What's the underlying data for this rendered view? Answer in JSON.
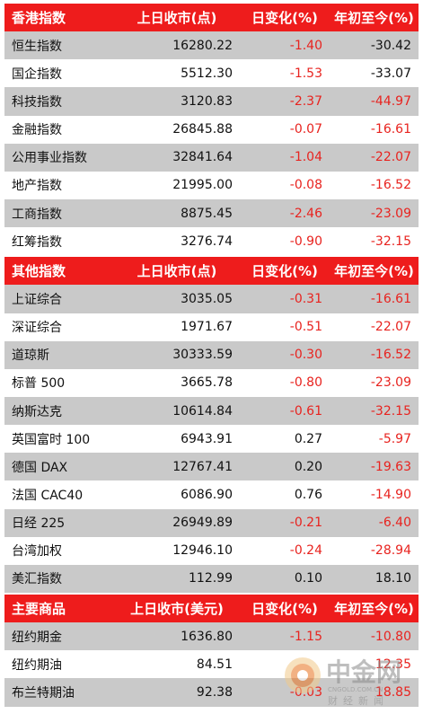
{
  "sections": [
    {
      "header": [
        "香港指数",
        "上日收市(点)",
        "日变化(%)",
        "年初至今(%)"
      ],
      "rows": [
        {
          "name": "恒生指数",
          "close": "16280.22",
          "day": "-1.40",
          "ytd": "-30.42",
          "day_color": "#e8231f",
          "ytd_color": "#111111"
        },
        {
          "name": "国企指数",
          "close": "5512.30",
          "day": "-1.53",
          "ytd": "-33.07",
          "day_color": "#e8231f",
          "ytd_color": "#111111"
        },
        {
          "name": "科技指数",
          "close": "3120.83",
          "day": "-2.37",
          "ytd": "-44.97",
          "day_color": "#e8231f",
          "ytd_color": "#e8231f"
        },
        {
          "name": "金融指数",
          "close": "26845.88",
          "day": "-0.07",
          "ytd": "-16.61",
          "day_color": "#e8231f",
          "ytd_color": "#e8231f"
        },
        {
          "name": "公用事业指数",
          "close": "32841.64",
          "day": "-1.04",
          "ytd": "-22.07",
          "day_color": "#e8231f",
          "ytd_color": "#e8231f"
        },
        {
          "name": "地产指数",
          "close": "21995.00",
          "day": "-0.08",
          "ytd": "-16.52",
          "day_color": "#e8231f",
          "ytd_color": "#e8231f"
        },
        {
          "name": "工商指数",
          "close": "8875.45",
          "day": "-2.46",
          "ytd": "-23.09",
          "day_color": "#e8231f",
          "ytd_color": "#e8231f"
        },
        {
          "name": "红筹指数",
          "close": "3276.74",
          "day": "-0.90",
          "ytd": "-32.15",
          "day_color": "#e8231f",
          "ytd_color": "#e8231f"
        }
      ]
    },
    {
      "header": [
        "其他指数",
        "上日收市(点)",
        "日变化(%)",
        "年初至今(%)"
      ],
      "rows": [
        {
          "name": "上证综合",
          "close": "3035.05",
          "day": "-0.31",
          "ytd": "-16.61",
          "day_color": "#e8231f",
          "ytd_color": "#e8231f"
        },
        {
          "name": "深证综合",
          "close": "1971.67",
          "day": "-0.51",
          "ytd": "-22.07",
          "day_color": "#e8231f",
          "ytd_color": "#e8231f"
        },
        {
          "name": "道琼斯",
          "close": "30333.59",
          "day": "-0.30",
          "ytd": "-16.52",
          "day_color": "#e8231f",
          "ytd_color": "#e8231f"
        },
        {
          "name": "标普 500",
          "close": "3665.78",
          "day": "-0.80",
          "ytd": "-23.09",
          "day_color": "#e8231f",
          "ytd_color": "#e8231f"
        },
        {
          "name": "纳斯达克",
          "close": "10614.84",
          "day": "-0.61",
          "ytd": "-32.15",
          "day_color": "#e8231f",
          "ytd_color": "#e8231f"
        },
        {
          "name": "英国富时 100",
          "close": "6943.91",
          "day": "0.27",
          "ytd": "-5.97",
          "day_color": "#111111",
          "ytd_color": "#e8231f"
        },
        {
          "name": "德国 DAX",
          "close": "12767.41",
          "day": "0.20",
          "ytd": "-19.63",
          "day_color": "#111111",
          "ytd_color": "#e8231f"
        },
        {
          "name": "法国 CAC40",
          "close": "6086.90",
          "day": "0.76",
          "ytd": "-14.90",
          "day_color": "#111111",
          "ytd_color": "#e8231f"
        },
        {
          "name": "日经 225",
          "close": "26949.89",
          "day": "-0.21",
          "ytd": "-6.40",
          "day_color": "#e8231f",
          "ytd_color": "#e8231f"
        },
        {
          "name": "台湾加权",
          "close": "12946.10",
          "day": "-0.24",
          "ytd": "-28.94",
          "day_color": "#e8231f",
          "ytd_color": "#e8231f"
        },
        {
          "name": "美汇指数",
          "close": "112.99",
          "day": "0.10",
          "ytd": "18.10",
          "day_color": "#111111",
          "ytd_color": "#111111"
        }
      ]
    },
    {
      "header": [
        "主要商品",
        "上日收市(美元)",
        "日变化(%)",
        "年初至今(%)"
      ],
      "rows": [
        {
          "name": "纽约期金",
          "close": "1636.80",
          "day": "-1.15",
          "ytd": "-10.80",
          "day_color": "#e8231f",
          "ytd_color": "#e8231f"
        },
        {
          "name": "纽约期油",
          "close": "84.51",
          "day": "",
          "ytd": "12.35",
          "day_color": "#e8231f",
          "ytd_color": "#e8231f"
        },
        {
          "name": "布兰特期油",
          "close": "92.38",
          "day": "-0.03",
          "ytd": "18.85",
          "day_color": "#e8231f",
          "ytd_color": "#e8231f"
        }
      ]
    }
  ],
  "watermark": {
    "brand": "中金网",
    "domain": "CNGOLD.COM.CN",
    "tagline": "财经新闻"
  }
}
